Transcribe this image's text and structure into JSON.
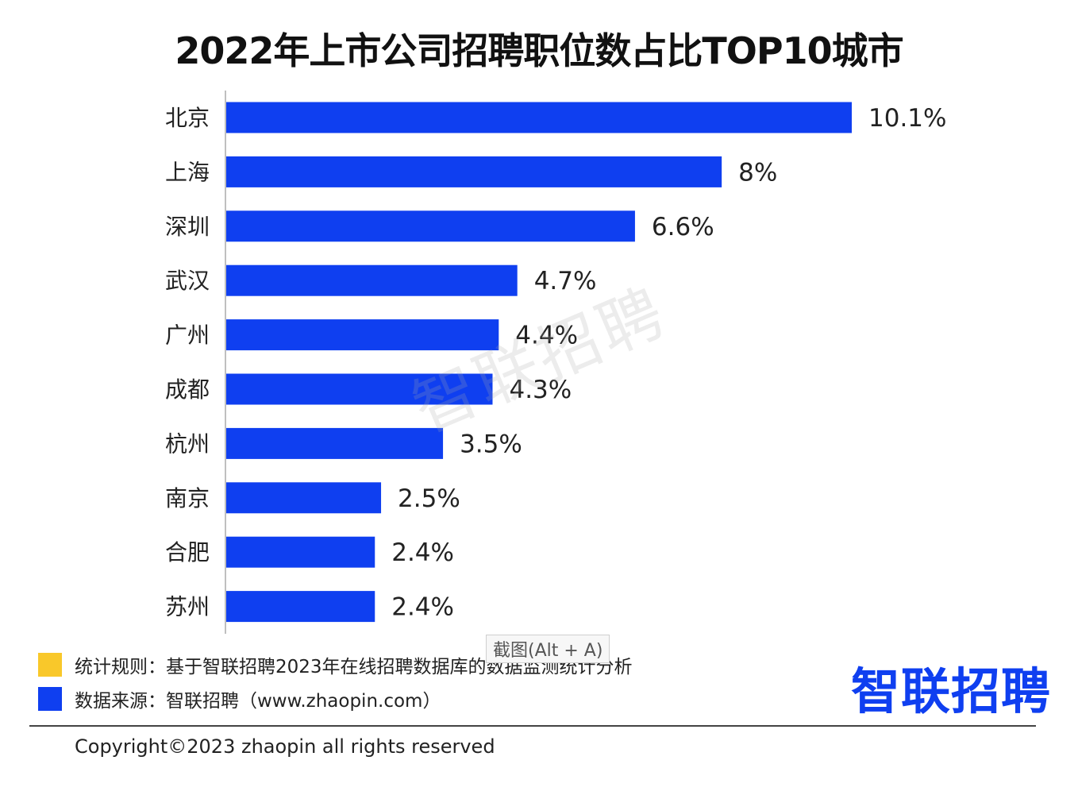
{
  "chart_data": {
    "type": "bar",
    "orientation": "horizontal",
    "title": "2022年上市公司招聘职位数占比TOP10城市",
    "categories": [
      "北京",
      "上海",
      "深圳",
      "武汉",
      "广州",
      "成都",
      "杭州",
      "南京",
      "合肥",
      "苏州"
    ],
    "values": [
      10.1,
      8,
      6.6,
      4.7,
      4.4,
      4.3,
      3.5,
      2.5,
      2.4,
      2.4
    ],
    "value_labels": [
      "10.1%",
      "8%",
      "6.6%",
      "4.7%",
      "4.4%",
      "4.3%",
      "3.5%",
      "2.5%",
      "2.4%",
      "2.4%"
    ],
    "unit": "%",
    "bar_color": "#0f3ff0",
    "xlim": [
      0,
      10.1
    ],
    "grid": false,
    "legend": "none"
  },
  "watermark": "智联招聘",
  "footnotes": [
    {
      "color": "#f9c82a",
      "text": "统计规则：基于智联招聘2023年在线招聘数据库的数据监测统计分析"
    },
    {
      "color": "#0f3ff0",
      "text": "数据来源：智联招聘（www.zhaopin.com）"
    }
  ],
  "brand": {
    "logo_text": "智联招聘",
    "color": "#0f3ff0"
  },
  "copyright": "Copyright©2023 zhaopin all rights reserved",
  "overlay": {
    "tooltip": "截图(Alt + A)"
  }
}
